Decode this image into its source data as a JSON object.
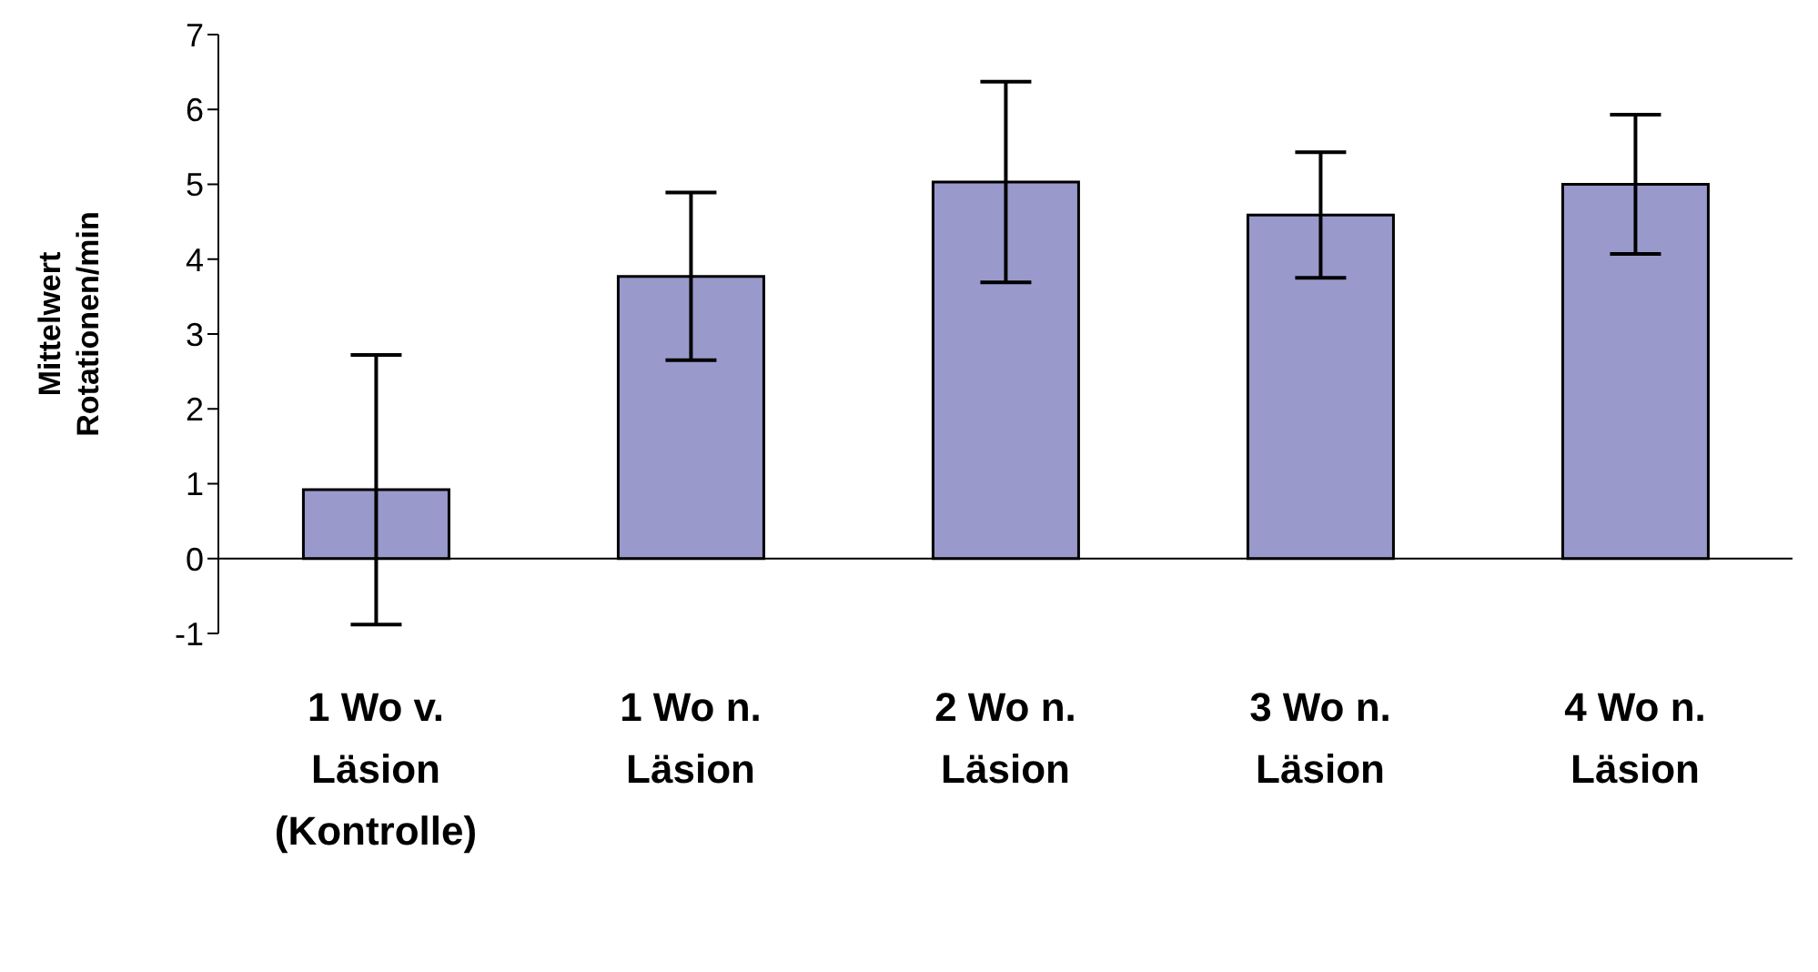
{
  "chart_data": {
    "type": "bar",
    "ylabel": "Mittelwert Rotationen/min",
    "categories": [
      "1 Wo v. Läsion (Kontrolle)",
      "1 Wo n. Läsion",
      "2 Wo n. Läsion",
      "3 Wo n. Läsion",
      "4 Wo n. Läsion"
    ],
    "values": [
      0.92,
      3.77,
      5.03,
      4.59,
      5.0
    ],
    "errors": [
      1.8,
      1.12,
      1.34,
      0.84,
      0.93
    ],
    "color": "#9999cc",
    "ylim": [
      -1,
      7
    ],
    "yticks": [
      -1,
      0,
      1,
      2,
      3,
      4,
      5,
      6,
      7
    ]
  }
}
